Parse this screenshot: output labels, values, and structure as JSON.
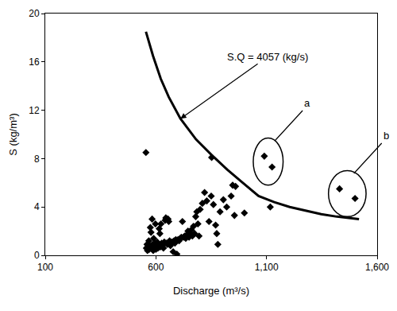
{
  "chart_data": {
    "type": "scatter",
    "x_label": "Discharge (m³/s)",
    "y_label": "S (kg/m³)",
    "xlim": [
      100,
      1600
    ],
    "ylim": [
      0,
      20
    ],
    "xticks": [
      100,
      600,
      {
        "value": 1100,
        "label": "1,100"
      },
      {
        "value": 1600,
        "label": "1,600"
      }
    ],
    "yticks": [
      0,
      4,
      8,
      12,
      16,
      20
    ],
    "grid": false,
    "series": [
      {
        "type": "scatter",
        "color": "#000000",
        "marker": "diamond",
        "x": [
          555,
          557,
          560,
          562,
          565,
          568,
          570,
          572,
          575,
          578,
          580,
          583,
          585,
          588,
          590,
          593,
          596,
          598,
          600,
          603,
          606,
          609,
          612,
          615,
          618,
          620,
          623,
          626,
          630,
          634,
          638,
          642,
          645,
          648,
          652,
          655,
          658,
          662,
          666,
          670,
          674,
          678,
          682,
          686,
          690,
          695,
          700,
          705,
          710,
          715,
          720,
          725,
          730,
          735,
          740,
          745,
          750,
          755,
          760,
          765,
          770,
          775,
          780,
          785,
          790,
          795,
          800,
          810,
          820,
          830,
          840,
          850,
          852,
          860,
          870,
          875,
          880,
          890,
          905,
          920,
          940,
          947,
          955,
          960,
          1000,
          1117
        ],
        "values": [
          8.5,
          0.6,
          0.9,
          0.4,
          0.7,
          1.2,
          0.5,
          0.8,
          2.3,
          1.9,
          0.6,
          3.0,
          0.9,
          0.4,
          1.4,
          0.7,
          1.0,
          2.6,
          0.5,
          0.8,
          1.1,
          0.6,
          0.9,
          2.2,
          1.8,
          0.7,
          2.6,
          1.0,
          0.8,
          0.6,
          1.1,
          2.9,
          3.1,
          1.0,
          0.9,
          3.0,
          2.8,
          1.2,
          0.8,
          1.0,
          1.1,
          0.3,
          1.2,
          1.0,
          1.3,
          0.1,
          1.3,
          1.2,
          1.4,
          1.5,
          2.8,
          1.5,
          1.6,
          1.4,
          1.7,
          2.0,
          1.5,
          1.8,
          2.1,
          1.6,
          2.4,
          1.8,
          3.2,
          3.6,
          2.6,
          1.6,
          3.8,
          4.3,
          5.2,
          4.5,
          2.8,
          4.9,
          8.1,
          4.2,
          2.5,
          1.8,
          0.9,
          3.6,
          4.6,
          4.0,
          4.9,
          5.8,
          3.3,
          5.7,
          3.5,
          4.0
        ]
      },
      {
        "type": "line",
        "color": "#000000",
        "line_style": "solid",
        "x": [
          555,
          587,
          622,
          658,
          711,
          781,
          852,
          922,
          993,
          1064,
          1135,
          1205,
          1276,
          1347,
          1418,
          1518
        ],
        "values": [
          18.5,
          16.5,
          14.6,
          13.1,
          11.3,
          9.6,
          8.3,
          7.1,
          6.0,
          4.9,
          4.4,
          4.0,
          3.7,
          3.4,
          3.2,
          3.0
        ]
      }
    ],
    "annotations": [
      {
        "text": "S.Q = 4057 (kg/s)",
        "x": 711,
        "y": 11.3
      },
      {
        "text": "a",
        "x": [
          1090,
          1125
        ],
        "y": [
          8.2,
          7.3
        ]
      },
      {
        "text": "b",
        "x": [
          1430,
          1500
        ],
        "y": [
          5.5,
          4.7
        ]
      }
    ]
  }
}
